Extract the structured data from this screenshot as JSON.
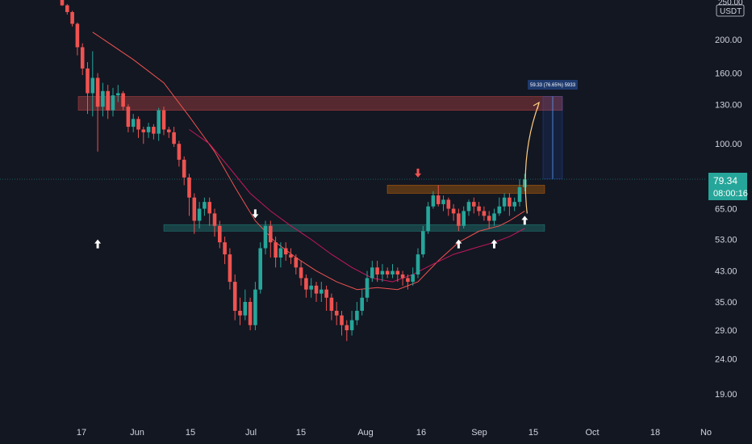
{
  "header": {
    "top_value": "250.00",
    "currency": "USDT"
  },
  "colors": {
    "bg": "#131722",
    "up": "#26a69a",
    "down": "#ef5350",
    "axis_text": "#d1d4dc",
    "price_badge": "#26a69a",
    "ma_fast": "#ef5350",
    "ma_slow": "#c2185b"
  },
  "chart_data": {
    "type": "candlestick",
    "title": "",
    "y_scale": "log",
    "ylim": [
      16,
      260
    ],
    "y_ticks": [
      "200.00",
      "160.00",
      "130.00",
      "100.00",
      "65.00",
      "53.00",
      "43.00",
      "35.00",
      "29.00",
      "24.00",
      "19.00"
    ],
    "x_ticks": [
      "17",
      "Jun",
      "15",
      "Jul",
      "15",
      "Aug",
      "16",
      "Sep",
      "15",
      "Oct",
      "18",
      "No"
    ],
    "last_price": "79.34",
    "countdown": "08:00:16",
    "measure_label": "59.33 (76.65%) 5933",
    "zones": [
      {
        "name": "resistance-top",
        "low": 125,
        "high": 137,
        "color": "#ef5350"
      },
      {
        "name": "resistance-mid",
        "low": 72,
        "high": 76,
        "color": "#f57c00"
      },
      {
        "name": "support",
        "low": 56,
        "high": 58.5,
        "color": "#26a69a"
      }
    ],
    "candles": [
      [
        262,
        251,
        263,
        250
      ],
      [
        251,
        240,
        253,
        236
      ],
      [
        240,
        222,
        242,
        218
      ],
      [
        222,
        190,
        224,
        180
      ],
      [
        190,
        165,
        195,
        158
      ],
      [
        165,
        140,
        172,
        122
      ],
      [
        140,
        155,
        185,
        120
      ],
      [
        155,
        128,
        160,
        95
      ],
      [
        128,
        142,
        150,
        120
      ],
      [
        142,
        125,
        148,
        118
      ],
      [
        125,
        138,
        145,
        120
      ],
      [
        138,
        140,
        148,
        132
      ],
      [
        140,
        128,
        142,
        125
      ],
      [
        128,
        112,
        130,
        108
      ],
      [
        112,
        118,
        122,
        108
      ],
      [
        118,
        110,
        120,
        104
      ],
      [
        110,
        108,
        112,
        100
      ],
      [
        108,
        112,
        115,
        104
      ],
      [
        112,
        107,
        114,
        103
      ],
      [
        107,
        125,
        127,
        102
      ],
      [
        125,
        110,
        128,
        106
      ],
      [
        110,
        108,
        112,
        104
      ],
      [
        108,
        100,
        112,
        98
      ],
      [
        100,
        90,
        102,
        86
      ],
      [
        90,
        80,
        92,
        76
      ],
      [
        80,
        70,
        82,
        62
      ],
      [
        70,
        60,
        72,
        55
      ],
      [
        60,
        65,
        68,
        57
      ],
      [
        65,
        68,
        70,
        62
      ],
      [
        68,
        63,
        70,
        58
      ],
      [
        63,
        58,
        65,
        54
      ],
      [
        58,
        52,
        60,
        50
      ],
      [
        52,
        48,
        54,
        45
      ],
      [
        48,
        40,
        50,
        38
      ],
      [
        40,
        33,
        42,
        31
      ],
      [
        33,
        32,
        36,
        30
      ],
      [
        32,
        35,
        38,
        31
      ],
      [
        35,
        30,
        36,
        29
      ],
      [
        30,
        38,
        40,
        29
      ],
      [
        38,
        50,
        52,
        37
      ],
      [
        50,
        58,
        60,
        48
      ],
      [
        58,
        52,
        60,
        47
      ],
      [
        52,
        47,
        54,
        44
      ],
      [
        47,
        50,
        52,
        44
      ],
      [
        50,
        48,
        52,
        46
      ],
      [
        48,
        47,
        50,
        45
      ],
      [
        47,
        44,
        48,
        42
      ],
      [
        44,
        41,
        46,
        39
      ],
      [
        41,
        38,
        42,
        36
      ],
      [
        38,
        39,
        41,
        36
      ],
      [
        39,
        37,
        40,
        35
      ],
      [
        37,
        38,
        40,
        35
      ],
      [
        38,
        36,
        39,
        33
      ],
      [
        36,
        33,
        37,
        31
      ],
      [
        33,
        32,
        35,
        30
      ],
      [
        32,
        30,
        33,
        28
      ],
      [
        30,
        29,
        31,
        27
      ],
      [
        29,
        31,
        33,
        28
      ],
      [
        31,
        33,
        35,
        30
      ],
      [
        33,
        36,
        38,
        32
      ],
      [
        36,
        41,
        43,
        35
      ],
      [
        41,
        44,
        46,
        40
      ],
      [
        44,
        42,
        46,
        40
      ],
      [
        42,
        43,
        45,
        40
      ],
      [
        43,
        42,
        44,
        41
      ],
      [
        42,
        43,
        45,
        41
      ],
      [
        43,
        42,
        44,
        40
      ],
      [
        42,
        41,
        43,
        39
      ],
      [
        41,
        40,
        42,
        38
      ],
      [
        40,
        42,
        44,
        39
      ],
      [
        42,
        48,
        50,
        41
      ],
      [
        48,
        56,
        58,
        47
      ],
      [
        56,
        66,
        68,
        55
      ],
      [
        66,
        71,
        73,
        65
      ],
      [
        71,
        67,
        76,
        66
      ],
      [
        67,
        69,
        71,
        64
      ],
      [
        69,
        65,
        70,
        62
      ],
      [
        65,
        63,
        67,
        60
      ],
      [
        63,
        58,
        65,
        56
      ],
      [
        58,
        64,
        66,
        57
      ],
      [
        64,
        68,
        69,
        62
      ],
      [
        68,
        66,
        70,
        63
      ],
      [
        66,
        64,
        68,
        62
      ],
      [
        64,
        62,
        66,
        60
      ],
      [
        62,
        60,
        64,
        57
      ],
      [
        60,
        63,
        65,
        58
      ],
      [
        63,
        66,
        70,
        62
      ],
      [
        66,
        70,
        72,
        64
      ],
      [
        70,
        66,
        72,
        62
      ],
      [
        66,
        68,
        70,
        64
      ],
      [
        68,
        75,
        79,
        66
      ],
      [
        75,
        79,
        82,
        73
      ]
    ],
    "ma_fast": [
      [
        6,
        210
      ],
      [
        14,
        175
      ],
      [
        20,
        150
      ],
      [
        25,
        120
      ],
      [
        30,
        95
      ],
      [
        34,
        75
      ],
      [
        38,
        60
      ],
      [
        42,
        52
      ],
      [
        46,
        47
      ],
      [
        50,
        43
      ],
      [
        54,
        40
      ],
      [
        58,
        38
      ],
      [
        62,
        38.5
      ],
      [
        66,
        38
      ],
      [
        70,
        40
      ],
      [
        74,
        46
      ],
      [
        78,
        52
      ],
      [
        82,
        56
      ],
      [
        86,
        58
      ],
      [
        88,
        60
      ],
      [
        91,
        64
      ]
    ],
    "ma_slow": [
      [
        25,
        110
      ],
      [
        29,
        100
      ],
      [
        33,
        85
      ],
      [
        37,
        72
      ],
      [
        41,
        64
      ],
      [
        45,
        58
      ],
      [
        49,
        53
      ],
      [
        53,
        48
      ],
      [
        57,
        44
      ],
      [
        61,
        41
      ],
      [
        65,
        40
      ],
      [
        69,
        42
      ],
      [
        73,
        45
      ],
      [
        77,
        48
      ],
      [
        81,
        50
      ],
      [
        85,
        52
      ],
      [
        88,
        54
      ],
      [
        91,
        57
      ]
    ],
    "arrows": [
      {
        "i": 7,
        "dir": "up",
        "price": 53,
        "color": "#ffffff"
      },
      {
        "i": 38,
        "dir": "down",
        "price": 61,
        "color": "#ffffff"
      },
      {
        "i": 70,
        "dir": "down",
        "price": 80,
        "color": "#ef5350"
      },
      {
        "i": 78,
        "dir": "up",
        "price": 53,
        "color": "#ffffff"
      },
      {
        "i": 85,
        "dir": "up",
        "price": 53,
        "color": "#ffffff"
      },
      {
        "i": 91,
        "dir": "up",
        "price": 62,
        "color": "#ffffff"
      }
    ]
  }
}
